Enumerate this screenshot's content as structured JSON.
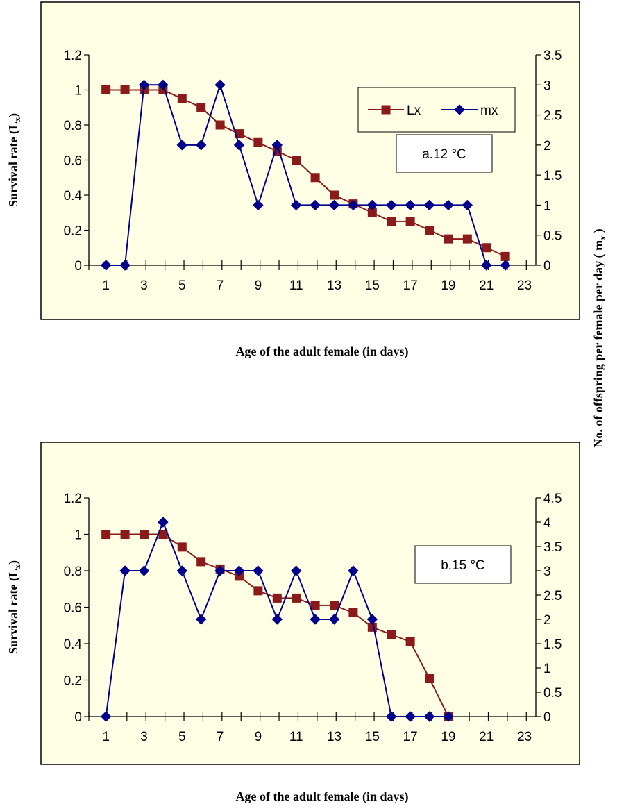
{
  "chart_data": [
    {
      "type": "line",
      "panel_label": "a.12 °C",
      "ylabel": "Survival rate (L",
      "ylabel_sub": "x",
      "ylabel_tail": ")",
      "xlabel": "Age of the adult female (in days)",
      "xlim": [
        1,
        23
      ],
      "x_tick_labels": [
        "1",
        "3",
        "5",
        "7",
        "9",
        "11",
        "13",
        "15",
        "17",
        "19",
        "21",
        "23"
      ],
      "ylim": [
        0,
        1.2
      ],
      "y_tick_labels": [
        "0",
        "0.2",
        "0.4",
        "0.6",
        "0.8",
        "1",
        "1.2"
      ],
      "y2lim": [
        0,
        3.5
      ],
      "y2_tick_labels": [
        "0",
        "0.5",
        "1",
        "1.5",
        "2",
        "2.5",
        "3",
        "3.5"
      ],
      "legend": {
        "position": "top-right",
        "entries": [
          "Lx",
          "mx"
        ]
      },
      "series": [
        {
          "name": "Lx",
          "axis": "left",
          "color": "#8B1A1A",
          "marker": "square",
          "x": [
            1,
            2,
            3,
            4,
            5,
            6,
            7,
            8,
            9,
            10,
            11,
            12,
            13,
            14,
            15,
            16,
            17,
            18,
            19,
            20,
            21,
            22
          ],
          "values": [
            1,
            1,
            1,
            1,
            0.95,
            0.9,
            0.8,
            0.75,
            0.7,
            0.65,
            0.6,
            0.5,
            0.4,
            0.35,
            0.3,
            0.25,
            0.25,
            0.2,
            0.15,
            0.15,
            0.1,
            0.05
          ]
        },
        {
          "name": "mx",
          "axis": "right",
          "color": "#00008B",
          "marker": "diamond",
          "x": [
            1,
            2,
            3,
            4,
            5,
            6,
            7,
            8,
            9,
            10,
            11,
            12,
            13,
            14,
            15,
            16,
            17,
            18,
            19,
            20,
            21,
            22
          ],
          "values": [
            0,
            0,
            3,
            3,
            2,
            2,
            3,
            2,
            1,
            2,
            1,
            1,
            1,
            1,
            1,
            1,
            1,
            1,
            1,
            1,
            0,
            0
          ]
        }
      ]
    },
    {
      "type": "line",
      "panel_label": "b.15 °C",
      "ylabel": "Survival rate (L",
      "ylabel_sub": "x",
      "ylabel_tail": ")",
      "xlabel": "Age of the adult female (in days)",
      "xlim": [
        1,
        23
      ],
      "x_tick_labels": [
        "1",
        "3",
        "5",
        "7",
        "9",
        "11",
        "13",
        "15",
        "17",
        "19",
        "21",
        "23"
      ],
      "ylim": [
        0,
        1.2
      ],
      "y_tick_labels": [
        "0",
        "0.2",
        "0.4",
        "0.6",
        "0.8",
        "1",
        "1.2"
      ],
      "y2lim": [
        0,
        4.5
      ],
      "y2_tick_labels": [
        "0",
        "0.5",
        "1",
        "1.5",
        "2",
        "2.5",
        "3",
        "3.5",
        "4",
        "4.5"
      ],
      "series": [
        {
          "name": "Lx",
          "axis": "left",
          "color": "#8B1A1A",
          "marker": "square",
          "x": [
            1,
            2,
            3,
            4,
            5,
            6,
            7,
            8,
            9,
            10,
            11,
            12,
            13,
            14,
            15,
            16,
            17,
            18,
            19
          ],
          "values": [
            1,
            1,
            1,
            1,
            0.93,
            0.85,
            0.81,
            0.77,
            0.69,
            0.65,
            0.65,
            0.61,
            0.61,
            0.57,
            0.49,
            0.45,
            0.41,
            0.21,
            0
          ]
        },
        {
          "name": "mx",
          "axis": "right",
          "color": "#00008B",
          "marker": "diamond",
          "x": [
            1,
            2,
            3,
            4,
            5,
            6,
            7,
            8,
            9,
            10,
            11,
            12,
            13,
            14,
            15,
            16,
            17,
            18,
            19
          ],
          "values": [
            0,
            3,
            3,
            4,
            3,
            2,
            3,
            3,
            3,
            2,
            3,
            2,
            2,
            3,
            2,
            0,
            0,
            0,
            0
          ]
        }
      ]
    }
  ],
  "right_axis_title": "No. of offspring per female per day ( m",
  "right_axis_title_sub": "x",
  "right_axis_title_tail": " )",
  "colors": {
    "panel_background": "#FFFFE6",
    "lx": "#8B1A1A",
    "mx": "#00008B"
  }
}
